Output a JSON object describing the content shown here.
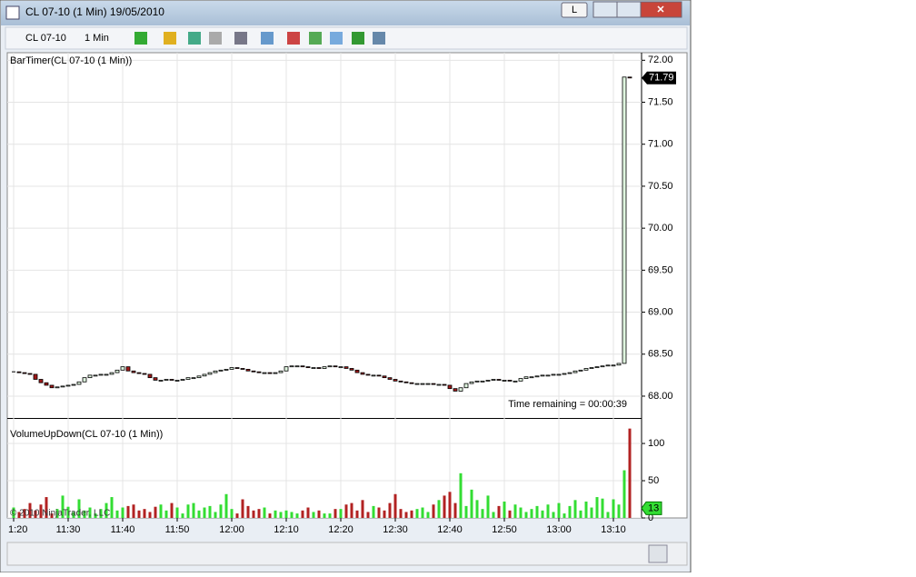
{
  "window": {
    "title": "CL 07-10 (1 Min)  19/05/2010",
    "button": "L"
  },
  "toolbar": {
    "instrument": "CL 07-10",
    "interval": "1 Min"
  },
  "chart_data": [
    {
      "type": "candlestick",
      "title": "BarTimer(CL 07-10 (1 Min))",
      "annotation": "Time remaining = 00:00:39",
      "copyright": "© 2010 NinjaTrader, LLC",
      "categories": [
        "1:20",
        null,
        null,
        null,
        null,
        null,
        null,
        null,
        null,
        null,
        "11:30",
        null,
        null,
        null,
        null,
        null,
        null,
        null,
        null,
        null,
        "11:40",
        null,
        null,
        null,
        null,
        null,
        null,
        null,
        null,
        null,
        "11:50",
        null,
        null,
        null,
        null,
        null,
        null,
        null,
        null,
        null,
        "12:00",
        null,
        null,
        null,
        null,
        null,
        null,
        null,
        null,
        null,
        "12:10",
        null,
        null,
        null,
        null,
        null,
        null,
        null,
        null,
        null,
        "12:20",
        null,
        null,
        null,
        null,
        null,
        null,
        null,
        null,
        null,
        "12:30",
        null,
        null,
        null,
        null,
        null,
        null,
        null,
        null,
        null,
        "12:40",
        null,
        null,
        null,
        null,
        null,
        null,
        null,
        null,
        null,
        "12:50",
        null,
        null,
        null,
        null,
        null,
        null,
        null,
        null,
        null,
        "13:00",
        null,
        null,
        null,
        null,
        null,
        null,
        null,
        null,
        null,
        "13:10",
        null,
        null,
        null
      ],
      "close": [
        68.29,
        68.28,
        68.27,
        68.26,
        68.2,
        68.16,
        68.13,
        68.1,
        68.11,
        68.12,
        68.13,
        68.14,
        68.17,
        68.22,
        68.25,
        68.25,
        68.26,
        68.26,
        68.28,
        68.31,
        68.35,
        68.3,
        68.28,
        68.27,
        68.26,
        68.22,
        68.19,
        68.19,
        68.2,
        68.19,
        68.19,
        68.2,
        68.22,
        68.22,
        68.24,
        68.26,
        68.28,
        68.3,
        68.31,
        68.32,
        68.34,
        68.33,
        68.32,
        68.3,
        68.29,
        68.28,
        68.28,
        68.27,
        68.28,
        68.3,
        68.35,
        68.36,
        68.36,
        68.35,
        68.34,
        68.34,
        68.33,
        68.35,
        68.36,
        68.35,
        68.35,
        68.33,
        68.31,
        68.28,
        68.26,
        68.25,
        68.25,
        68.24,
        68.22,
        68.2,
        68.18,
        68.17,
        68.16,
        68.15,
        68.15,
        68.15,
        68.15,
        68.14,
        68.14,
        68.13,
        68.09,
        68.06,
        68.1,
        68.15,
        68.17,
        68.18,
        68.18,
        68.19,
        68.2,
        68.19,
        68.19,
        68.18,
        68.18,
        68.21,
        68.23,
        68.23,
        68.24,
        68.25,
        68.25,
        68.26,
        68.26,
        68.27,
        68.28,
        68.3,
        68.31,
        68.33,
        68.34,
        68.35,
        68.36,
        68.37,
        68.37,
        68.39,
        71.8,
        71.79
      ],
      "up_color": "#dff5df",
      "down_color": "#a01818",
      "ylim": [
        67.74,
        72.09
      ],
      "yticks": [
        {
          "value": 68,
          "label": "68.00"
        },
        {
          "value": 68.5,
          "label": "68.50"
        },
        {
          "value": 69,
          "label": "69.00"
        },
        {
          "value": 69.5,
          "label": "69.50"
        },
        {
          "value": 70,
          "label": "70.00"
        },
        {
          "value": 70.5,
          "label": "70.50"
        },
        {
          "value": 71,
          "label": "71.00"
        },
        {
          "value": 71.5,
          "label": "71.50"
        },
        {
          "value": 72,
          "label": "72.00"
        }
      ],
      "grid": true
    },
    {
      "type": "bar",
      "title": "VolumeUpDown(CL 07-10 (1 Min))",
      "values": [
        14,
        8,
        12,
        20,
        10,
        18,
        28,
        6,
        12,
        30,
        15,
        8,
        25,
        10,
        14,
        6,
        12,
        20,
        28,
        10,
        14,
        16,
        18,
        10,
        12,
        8,
        15,
        18,
        10,
        20,
        14,
        6,
        18,
        20,
        10,
        14,
        16,
        8,
        18,
        32,
        12,
        6,
        25,
        16,
        10,
        12,
        14,
        6,
        10,
        8,
        10,
        8,
        6,
        10,
        14,
        8,
        10,
        6,
        6,
        12,
        12,
        18,
        20,
        10,
        24,
        8,
        16,
        14,
        10,
        20,
        32,
        12,
        8,
        10,
        12,
        14,
        8,
        18,
        24,
        30,
        35,
        20,
        60,
        16,
        38,
        24,
        12,
        30,
        8,
        16,
        22,
        10,
        18,
        14,
        8,
        12,
        16,
        10,
        18,
        8,
        20,
        6,
        16,
        24,
        10,
        22,
        14,
        28,
        26,
        8,
        25,
        18,
        64,
        120
      ],
      "current_volume": 13,
      "up_color": "#33dd33",
      "down_color": "#b22222",
      "ylim": [
        0,
        133
      ],
      "yticks": [
        0,
        50,
        100
      ],
      "grid": true
    }
  ]
}
